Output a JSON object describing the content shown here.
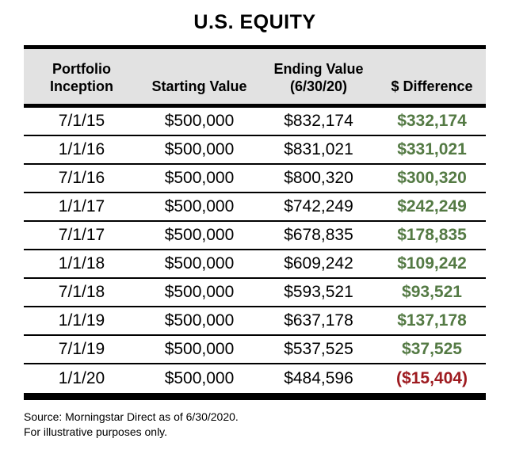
{
  "title": "U.S. EQUITY",
  "colors": {
    "positive": "#547a44",
    "negative": "#9e1b20",
    "header_bg": "#e2e2e2",
    "line": "#000000"
  },
  "table": {
    "columns": [
      {
        "label": "Portfolio Inception",
        "line1": "Portfolio",
        "line2": "Inception"
      },
      {
        "label": "Starting Value",
        "line1": "",
        "line2": "Starting Value"
      },
      {
        "label": "Ending Value (6/30/20)",
        "line1": "Ending Value",
        "line2": "(6/30/20)"
      },
      {
        "label": "$ Difference",
        "line1": "",
        "line2": "$ Difference"
      }
    ],
    "rows": [
      {
        "inception": "7/1/15",
        "starting": "$500,000",
        "ending": "$832,174",
        "difference": "$332,174",
        "status": "positive"
      },
      {
        "inception": "1/1/16",
        "starting": "$500,000",
        "ending": "$831,021",
        "difference": "$331,021",
        "status": "positive"
      },
      {
        "inception": "7/1/16",
        "starting": "$500,000",
        "ending": "$800,320",
        "difference": "$300,320",
        "status": "positive"
      },
      {
        "inception": "1/1/17",
        "starting": "$500,000",
        "ending": "$742,249",
        "difference": "$242,249",
        "status": "positive"
      },
      {
        "inception": "7/1/17",
        "starting": "$500,000",
        "ending": "$678,835",
        "difference": "$178,835",
        "status": "positive"
      },
      {
        "inception": "1/1/18",
        "starting": "$500,000",
        "ending": "$609,242",
        "difference": "$109,242",
        "status": "positive"
      },
      {
        "inception": "7/1/18",
        "starting": "$500,000",
        "ending": "$593,521",
        "difference": "$93,521",
        "status": "positive"
      },
      {
        "inception": "1/1/19",
        "starting": "$500,000",
        "ending": "$637,178",
        "difference": "$137,178",
        "status": "positive"
      },
      {
        "inception": "7/1/19",
        "starting": "$500,000",
        "ending": "$537,525",
        "difference": "$37,525",
        "status": "positive"
      },
      {
        "inception": "1/1/20",
        "starting": "$500,000",
        "ending": "$484,596",
        "difference": "($15,404)",
        "status": "negative"
      }
    ]
  },
  "footer": {
    "source": "Source: Morningstar Direct as of 6/30/2020.",
    "disclaimer": "For illustrative purposes only."
  },
  "chart_data": {
    "type": "table",
    "title": "U.S. EQUITY",
    "columns": [
      "Portfolio Inception",
      "Starting Value",
      "Ending Value (6/30/20)",
      "$ Difference"
    ],
    "rows": [
      [
        "7/1/15",
        500000,
        832174,
        332174
      ],
      [
        "1/1/16",
        500000,
        831021,
        331021
      ],
      [
        "7/1/16",
        500000,
        800320,
        300320
      ],
      [
        "1/1/17",
        500000,
        742249,
        242249
      ],
      [
        "7/1/17",
        500000,
        678835,
        178835
      ],
      [
        "1/1/18",
        500000,
        609242,
        109242
      ],
      [
        "7/1/18",
        500000,
        593521,
        93521
      ],
      [
        "1/1/19",
        500000,
        637178,
        137178
      ],
      [
        "7/1/19",
        500000,
        537525,
        37525
      ],
      [
        "1/1/20",
        500000,
        484596,
        -15404
      ]
    ],
    "notes": [
      "Source: Morningstar Direct as of 6/30/2020.",
      "For illustrative purposes only."
    ],
    "legend_position": "none",
    "positive_color": "#547a44",
    "negative_color": "#9e1b20"
  }
}
